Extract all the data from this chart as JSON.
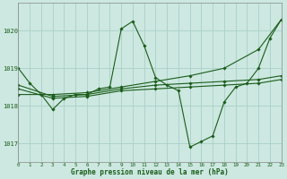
{
  "bg_color": "#cce8e0",
  "grid_color": "#aacfc8",
  "line_color": "#1a5c1a",
  "marker_color": "#1a5c1a",
  "xlabel": "Graphe pression niveau de la mer (hPa)",
  "xlim": [
    0,
    23
  ],
  "ylim": [
    1016.5,
    1020.75
  ],
  "yticks": [
    1017,
    1018,
    1019,
    1020
  ],
  "xticks": [
    0,
    1,
    2,
    3,
    4,
    5,
    6,
    7,
    8,
    9,
    10,
    11,
    12,
    13,
    14,
    15,
    16,
    17,
    18,
    19,
    20,
    21,
    22,
    23
  ],
  "series": [
    {
      "x": [
        0,
        1,
        2,
        3,
        4,
        5,
        6,
        7,
        8,
        9,
        10,
        11,
        12,
        13,
        14,
        15,
        16,
        17,
        18,
        19,
        20,
        21,
        22,
        23
      ],
      "y": [
        1019.0,
        1018.6,
        1018.3,
        1017.9,
        1018.2,
        1018.3,
        1018.3,
        1018.45,
        1018.5,
        1020.05,
        1020.25,
        1019.6,
        1018.75,
        1018.55,
        1018.4,
        1016.9,
        1017.05,
        1017.2,
        1018.1,
        1018.5,
        1018.6,
        1019.0,
        1019.8,
        1020.3
      ]
    },
    {
      "x": [
        0,
        3,
        6,
        9,
        12,
        15,
        18,
        21,
        23
      ],
      "y": [
        1018.55,
        1018.25,
        1018.3,
        1018.45,
        1018.55,
        1018.6,
        1018.65,
        1018.7,
        1018.8
      ]
    },
    {
      "x": [
        0,
        3,
        6,
        9,
        12,
        15,
        18,
        21,
        23
      ],
      "y": [
        1018.45,
        1018.2,
        1018.25,
        1018.4,
        1018.45,
        1018.5,
        1018.55,
        1018.6,
        1018.7
      ]
    },
    {
      "x": [
        0,
        3,
        6,
        9,
        12,
        15,
        18,
        21,
        23
      ],
      "y": [
        1018.3,
        1018.3,
        1018.35,
        1018.5,
        1018.65,
        1018.8,
        1019.0,
        1019.5,
        1020.3
      ]
    }
  ]
}
